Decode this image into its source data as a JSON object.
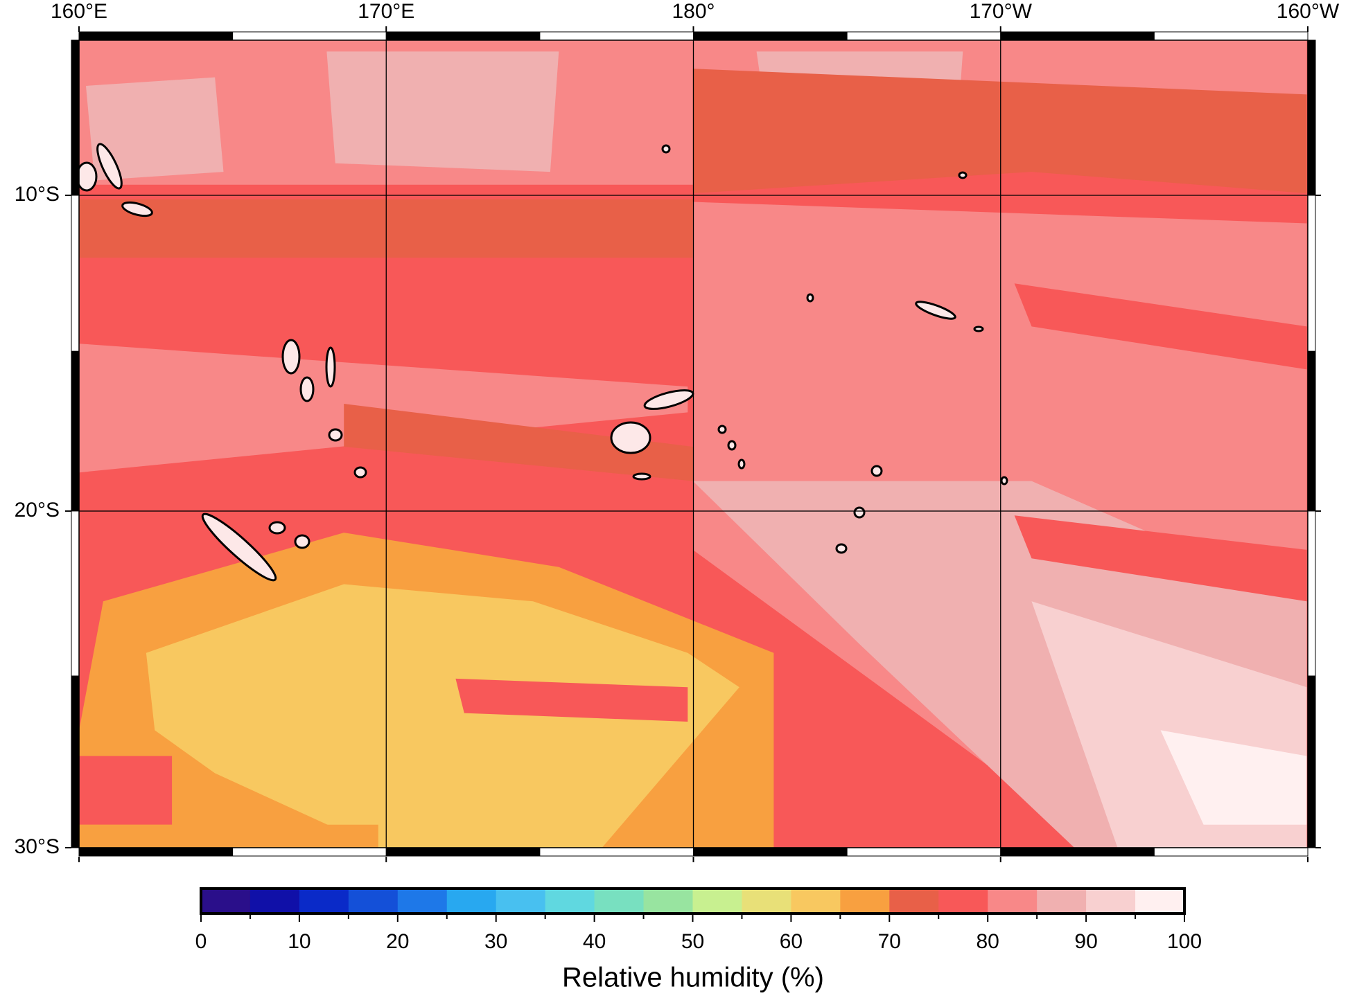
{
  "map": {
    "lon_ticks": [
      {
        "value": 160,
        "label": "160°E"
      },
      {
        "value": 170,
        "label": "170°E"
      },
      {
        "value": 180,
        "label": "180°"
      },
      {
        "value": 190,
        "label": "170°W"
      },
      {
        "value": 200,
        "label": "160°W"
      }
    ],
    "lat_ticks": [
      {
        "value": -10,
        "label": "10°S"
      },
      {
        "value": -20,
        "label": "20°S"
      },
      {
        "value": -30,
        "label": "30°S"
      }
    ],
    "colorbar": {
      "label": "Relative humidity (%)",
      "ticks": [
        0,
        10,
        20,
        30,
        40,
        50,
        60,
        70,
        80,
        90,
        100
      ],
      "colors": [
        "#2a0f8a",
        "#1010a8",
        "#0a2ac8",
        "#1450d8",
        "#1e78e8",
        "#28a8f0",
        "#48c0f0",
        "#60d8e0",
        "#78e0c0",
        "#98e4a0",
        "#c8f090",
        "#e8e078",
        "#f8c860",
        "#f8a040",
        "#e86048",
        "#f85858",
        "#f88888",
        "#f0b0b0",
        "#f8d0d0",
        "#fff0f0"
      ]
    }
  }
}
